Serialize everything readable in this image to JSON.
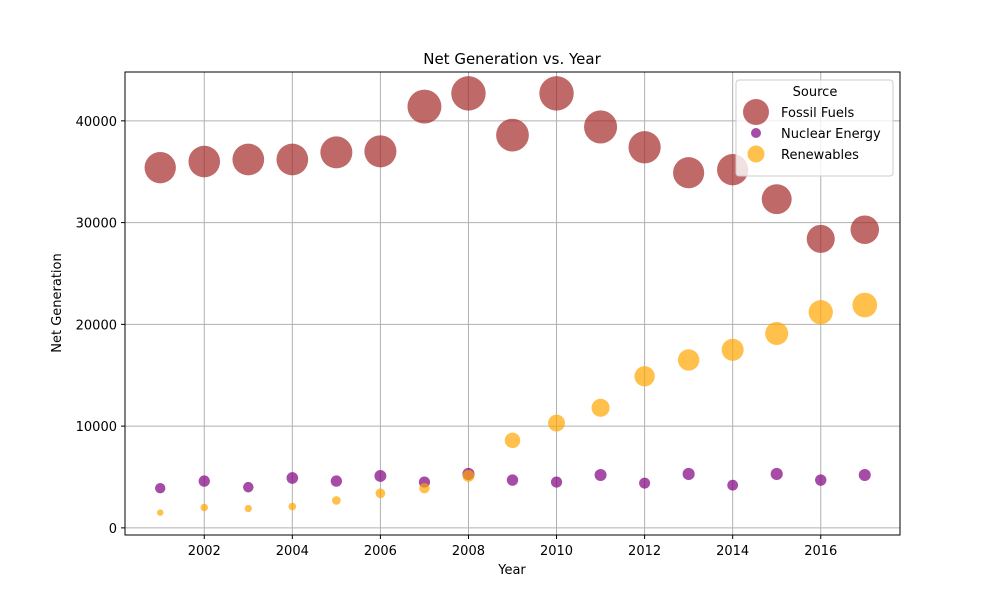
{
  "chart_data": {
    "type": "scatter",
    "title": "Net Generation vs. Year",
    "xlabel": "Year",
    "ylabel": "Net Generation",
    "xlim": [
      2000.2,
      2017.8
    ],
    "ylim": [
      -700,
      44800
    ],
    "x_ticks": [
      2002,
      2004,
      2006,
      2008,
      2010,
      2012,
      2014,
      2016
    ],
    "y_ticks": [
      0,
      10000,
      20000,
      30000,
      40000
    ],
    "grid": true,
    "legend": {
      "title": "Source",
      "placement": "top-right"
    },
    "x": [
      2001,
      2002,
      2003,
      2004,
      2005,
      2006,
      2007,
      2008,
      2009,
      2010,
      2011,
      2012,
      2013,
      2014,
      2015,
      2016,
      2017
    ],
    "series": [
      {
        "name": "Fossil Fuels",
        "color": "#a52a2a",
        "values": [
          35400,
          36000,
          36200,
          36200,
          36900,
          37000,
          41400,
          42700,
          38600,
          42700,
          39400,
          37400,
          34900,
          35200,
          32300,
          28400,
          29300
        ]
      },
      {
        "name": "Nuclear Energy",
        "color": "#800080",
        "values": [
          3900,
          4600,
          4000,
          4900,
          4600,
          5100,
          4500,
          5300,
          4700,
          4500,
          5200,
          4400,
          5300,
          4200,
          5300,
          4700,
          5200
        ]
      },
      {
        "name": "Renewables",
        "color": "#ffa500",
        "values": [
          1500,
          2000,
          1900,
          2100,
          2700,
          3400,
          3900,
          5100,
          8600,
          10300,
          11800,
          14900,
          16500,
          17500,
          19100,
          21200,
          21900
        ]
      }
    ]
  }
}
